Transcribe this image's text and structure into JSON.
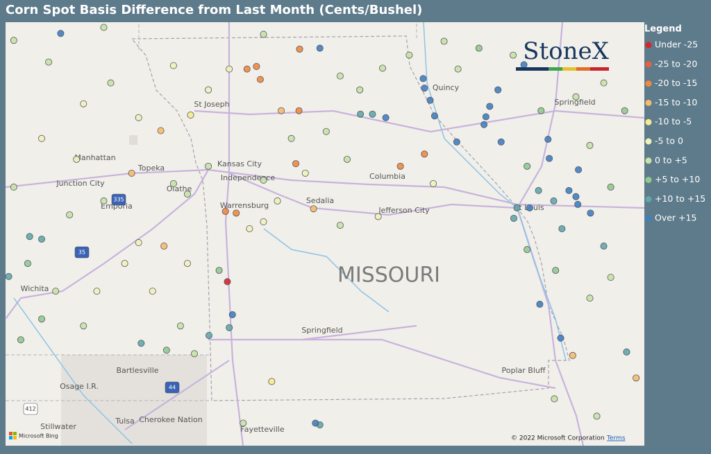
{
  "title": "Corn Spot Basis Difference from Last Month (Cents/Bushel)",
  "map": {
    "lonlim": [
      -98.27,
      -88.19
    ],
    "latlim": [
      35.88,
      40.76
    ],
    "state_label": "MISSOURI",
    "places": [
      "St Joseph",
      "Manhattan",
      "Topeka",
      "Junction City",
      "Kansas City",
      "Independence",
      "Olathe",
      "Columbia",
      "Warrensburg",
      "Sedalia",
      "Jefferson City",
      "Emporia",
      "St Louis",
      "Springfield",
      "Wichita",
      "Springfield",
      "Bartlesville",
      "Osage I.R.",
      "Poplar Bluff",
      "Tulsa",
      "Cherokee Nation",
      "Stillwater",
      "Fayetteville",
      "Quincy"
    ],
    "shields": [
      "335",
      "35",
      "44",
      "412"
    ],
    "logo": "StoneX",
    "bing": "Microsoft Bing",
    "copyright": "© 2022 Microsoft Corporation",
    "terms": "Terms"
  },
  "legend": {
    "title": "Legend",
    "items": [
      {
        "label": "Under -25",
        "color": "#d62728",
        "points": [
          [
            -94.77,
            37.77
          ]
        ]
      },
      {
        "label": "-25 to -20",
        "color": "#e8613a",
        "points": []
      },
      {
        "label": "-20 to -15",
        "color": "#f08a3c",
        "points": [
          [
            -93.63,
            40.45
          ],
          [
            -94.46,
            40.22
          ],
          [
            -94.31,
            40.25
          ],
          [
            -94.25,
            40.1
          ],
          [
            -93.64,
            39.74
          ],
          [
            -94.8,
            38.58
          ],
          [
            -94.63,
            38.56
          ],
          [
            -93.69,
            39.13
          ],
          [
            -92.04,
            39.1
          ],
          [
            -91.66,
            39.24
          ]
        ]
      },
      {
        "label": "-15 to -10",
        "color": "#f6bb6a",
        "points": [
          [
            -95.82,
            39.51
          ],
          [
            -96.28,
            39.02
          ],
          [
            -95.77,
            38.18
          ],
          [
            -93.41,
            38.61
          ],
          [
            -93.92,
            39.74
          ],
          [
            -89.32,
            36.92
          ],
          [
            -88.32,
            36.66
          ]
        ]
      },
      {
        "label": "-10 to -5",
        "color": "#f6ea8e",
        "points": [
          [
            -95.35,
            39.69
          ],
          [
            -94.07,
            36.62
          ]
        ]
      },
      {
        "label": "-5 to 0",
        "color": "#eef2b8",
        "points": [
          [
            -97.04,
            39.82
          ],
          [
            -96.17,
            39.66
          ],
          [
            -95.62,
            40.26
          ],
          [
            -95.07,
            39.98
          ],
          [
            -94.74,
            40.22
          ],
          [
            -93.54,
            39.02
          ],
          [
            -93.98,
            38.7
          ],
          [
            -94.42,
            38.38
          ],
          [
            -92.39,
            38.52
          ],
          [
            -96.39,
            37.98
          ],
          [
            -95.95,
            37.66
          ],
          [
            -96.17,
            38.22
          ],
          [
            -95.4,
            37.98
          ],
          [
            -97.15,
            39.18
          ],
          [
            -97.7,
            39.42
          ],
          [
            -96.83,
            37.66
          ],
          [
            -94.2,
            38.46
          ],
          [
            -91.52,
            38.9
          ]
        ]
      },
      {
        "label": "0 to +5",
        "color": "#c6e2a4",
        "points": [
          [
            -98.14,
            40.55
          ],
          [
            -97.59,
            40.3
          ],
          [
            -96.72,
            40.7
          ],
          [
            -96.61,
            40.06
          ],
          [
            -94.2,
            40.62
          ],
          [
            -92.99,
            40.14
          ],
          [
            -92.68,
            39.98
          ],
          [
            -92.32,
            40.23
          ],
          [
            -91.9,
            40.38
          ],
          [
            -91.35,
            40.54
          ],
          [
            -91.13,
            40.22
          ],
          [
            -90.26,
            40.38
          ],
          [
            -89.27,
            39.9
          ],
          [
            -88.83,
            40.06
          ],
          [
            -89.05,
            39.34
          ],
          [
            -89.05,
            37.58
          ],
          [
            -88.72,
            37.82
          ],
          [
            -88.94,
            36.22
          ],
          [
            -89.61,
            36.42
          ],
          [
            -93.76,
            39.42
          ],
          [
            -93.21,
            39.5
          ],
          [
            -92.88,
            39.18
          ],
          [
            -94.2,
            38.94
          ],
          [
            -92.99,
            38.42
          ],
          [
            -95.07,
            39.1
          ],
          [
            -95.62,
            38.9
          ],
          [
            -95.4,
            38.78
          ],
          [
            -96.72,
            38.7
          ],
          [
            -97.26,
            38.54
          ],
          [
            -97.48,
            37.66
          ],
          [
            -97.04,
            37.26
          ],
          [
            -95.51,
            37.26
          ],
          [
            -95.29,
            36.94
          ],
          [
            -94.52,
            36.14
          ],
          [
            -98.14,
            38.86
          ]
        ]
      },
      {
        "label": "+5 to +10",
        "color": "#93c98e",
        "points": [
          [
            -90.8,
            40.46
          ],
          [
            -89.82,
            39.74
          ],
          [
            -88.5,
            39.74
          ],
          [
            -90.04,
            39.1
          ],
          [
            -88.72,
            38.86
          ],
          [
            -90.04,
            38.14
          ],
          [
            -89.59,
            37.9
          ],
          [
            -94.9,
            37.9
          ],
          [
            -97.92,
            37.98
          ],
          [
            -97.7,
            37.34
          ],
          [
            -98.03,
            37.1
          ],
          [
            -95.73,
            36.98
          ]
        ]
      },
      {
        "label": "+10 to +15",
        "color": "#5fa7a8",
        "points": [
          [
            -92.67,
            39.7
          ],
          [
            -92.48,
            39.7
          ],
          [
            -93.31,
            36.12
          ],
          [
            -94.74,
            37.24
          ],
          [
            -95.06,
            37.15
          ],
          [
            -96.13,
            37.06
          ],
          [
            -97.89,
            38.29
          ],
          [
            -97.7,
            38.26
          ],
          [
            -98.22,
            37.83
          ],
          [
            -90.25,
            38.5
          ],
          [
            -90.2,
            38.62
          ],
          [
            -89.86,
            38.82
          ],
          [
            -89.62,
            38.7
          ],
          [
            -89.49,
            38.38
          ],
          [
            -88.83,
            38.18
          ],
          [
            -88.47,
            36.96
          ]
        ]
      },
      {
        "label": "Over +15",
        "color": "#3f7fc0",
        "points": [
          [
            -97.4,
            40.63
          ],
          [
            -93.31,
            40.46
          ],
          [
            -92.27,
            39.66
          ],
          [
            -91.66,
            40.0
          ],
          [
            -91.68,
            40.11
          ],
          [
            -91.57,
            39.86
          ],
          [
            -91.5,
            39.68
          ],
          [
            -91.15,
            39.38
          ],
          [
            -90.5,
            39.98
          ],
          [
            -90.63,
            39.79
          ],
          [
            -90.69,
            39.67
          ],
          [
            -90.72,
            39.58
          ],
          [
            -90.09,
            40.27
          ],
          [
            -90.45,
            39.38
          ],
          [
            -89.69,
            39.19
          ],
          [
            -89.71,
            39.41
          ],
          [
            -89.23,
            39.06
          ],
          [
            -89.38,
            38.82
          ],
          [
            -89.27,
            38.75
          ],
          [
            -89.24,
            38.66
          ],
          [
            -89.04,
            38.56
          ],
          [
            -90.0,
            38.62
          ],
          [
            -89.84,
            37.51
          ],
          [
            -89.51,
            37.12
          ],
          [
            -94.69,
            37.39
          ],
          [
            -93.38,
            36.14
          ]
        ]
      }
    ]
  }
}
